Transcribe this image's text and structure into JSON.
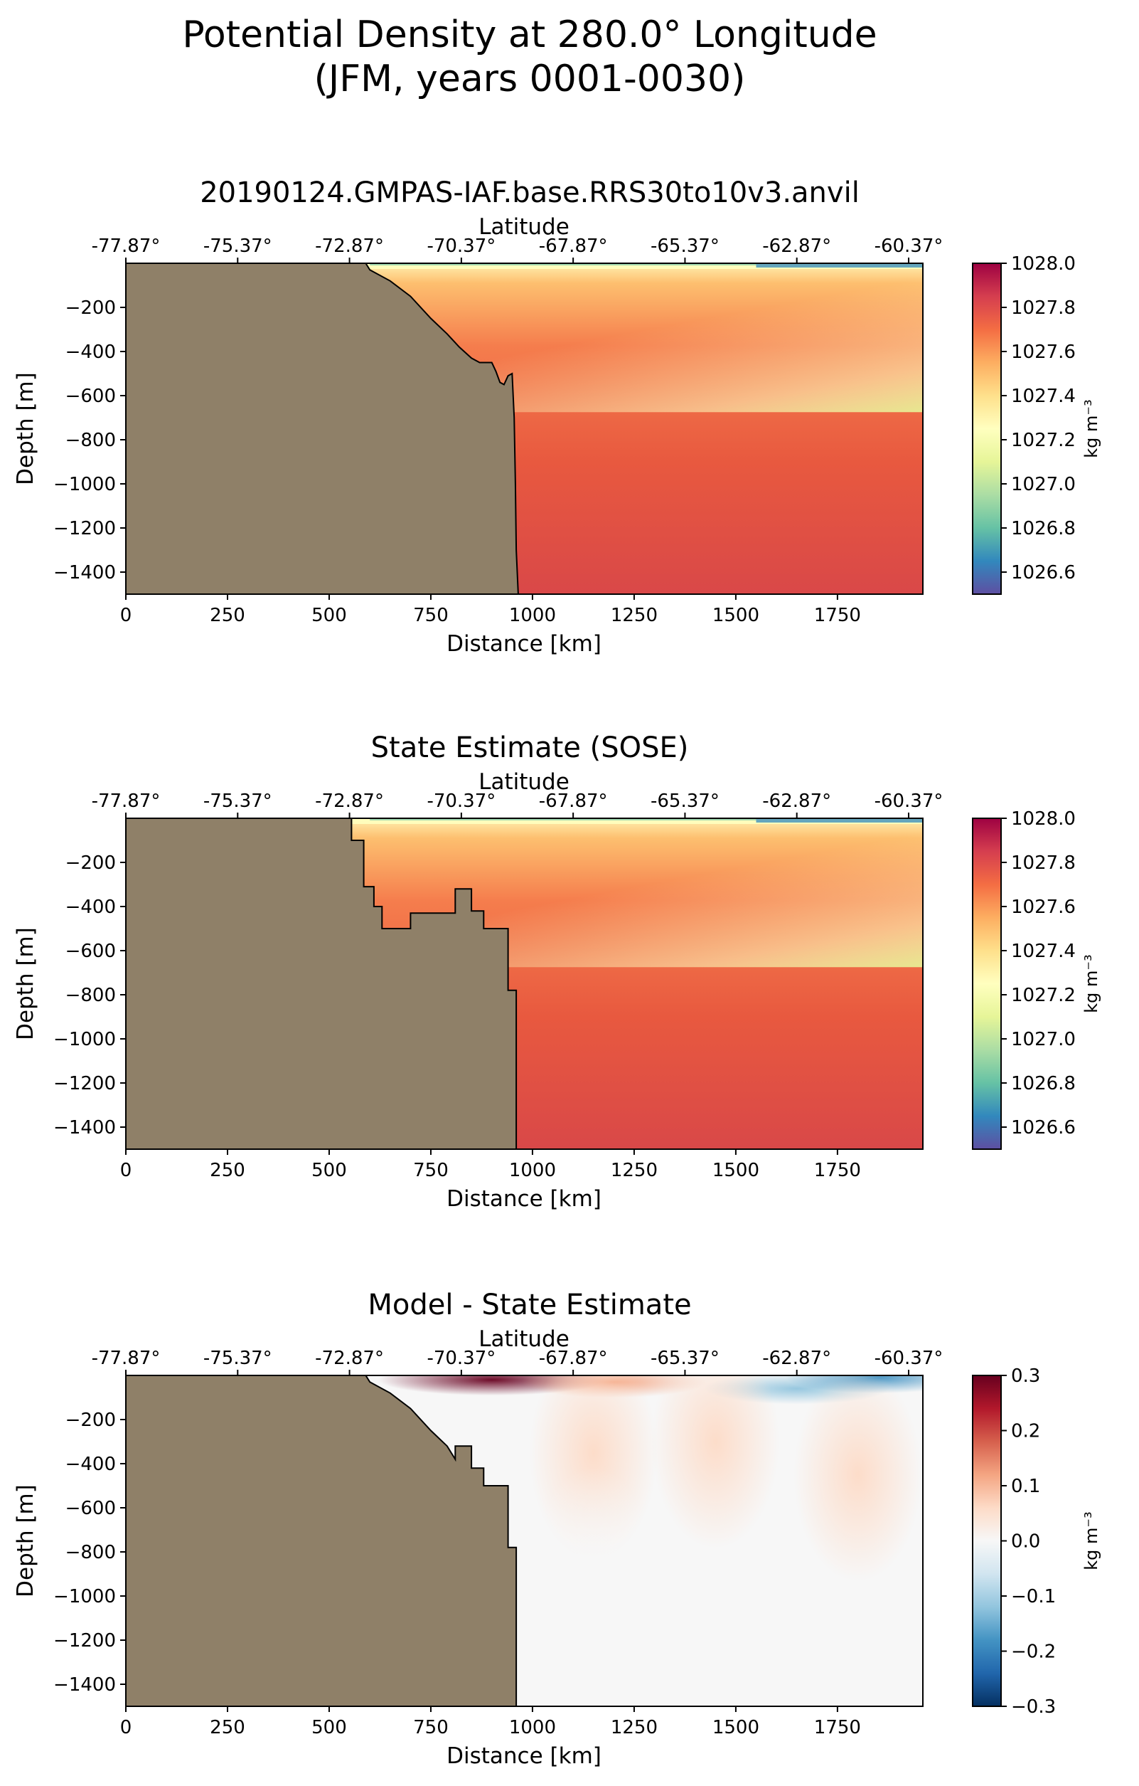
{
  "figure": {
    "title_line1": "Potential Density at 280.0° Longitude",
    "title_line2": "(JFM, years 0001-0030)"
  },
  "chart_data": [
    {
      "type": "heatmap",
      "title": "20190124.GMPAS-IAF.base.RRS30to10v3.anvil",
      "xlabel": "Distance [km]",
      "ylabel": "Depth [m]",
      "top_xlabel": "Latitude",
      "xlim": [
        0,
        1960
      ],
      "ylim": [
        -1500,
        0
      ],
      "x_ticks": [
        0,
        250,
        500,
        750,
        1000,
        1250,
        1500,
        1750
      ],
      "y_ticks": [
        -200,
        -400,
        -600,
        -800,
        -1000,
        -1200,
        -1400
      ],
      "latitude_ticks": [
        "-77.87°",
        "-75.37°",
        "-72.87°",
        "-70.37°",
        "-67.87°",
        "-65.37°",
        "-62.87°",
        "-60.37°"
      ],
      "colormap": "Spectral_r",
      "colorbar": {
        "label": "kg m⁻³",
        "range": [
          1026.5,
          1028.0
        ],
        "ticks": [
          1026.6,
          1026.8,
          1027.0,
          1027.2,
          1027.4,
          1027.6,
          1027.8,
          1028.0
        ]
      },
      "land_color": "#8f8068",
      "bathymetry": [
        [
          0,
          0
        ],
        [
          590,
          0
        ],
        [
          600,
          -30
        ],
        [
          650,
          -80
        ],
        [
          700,
          -150
        ],
        [
          750,
          -250
        ],
        [
          790,
          -320
        ],
        [
          820,
          -380
        ],
        [
          850,
          -430
        ],
        [
          870,
          -450
        ],
        [
          900,
          -450
        ],
        [
          910,
          -490
        ],
        [
          920,
          -540
        ],
        [
          930,
          -550
        ],
        [
          940,
          -510
        ],
        [
          950,
          -500
        ],
        [
          955,
          -700
        ],
        [
          958,
          -1000
        ],
        [
          960,
          -1300
        ],
        [
          965,
          -1500
        ],
        [
          0,
          -1500
        ]
      ],
      "field_summary": {
        "surface_layer": 1026.6,
        "shelf_upper": 1027.5,
        "mid_offshore": 1027.6,
        "deep": 1027.85,
        "offshore_surface_north": 1027.1
      }
    },
    {
      "type": "heatmap",
      "title": "State Estimate (SOSE)",
      "xlabel": "Distance [km]",
      "ylabel": "Depth [m]",
      "top_xlabel": "Latitude",
      "xlim": [
        0,
        1960
      ],
      "ylim": [
        -1500,
        0
      ],
      "x_ticks": [
        0,
        250,
        500,
        750,
        1000,
        1250,
        1500,
        1750
      ],
      "y_ticks": [
        -200,
        -400,
        -600,
        -800,
        -1000,
        -1200,
        -1400
      ],
      "latitude_ticks": [
        "-77.87°",
        "-75.37°",
        "-72.87°",
        "-70.37°",
        "-67.87°",
        "-65.37°",
        "-62.87°",
        "-60.37°"
      ],
      "colormap": "Spectral_r",
      "colorbar": {
        "label": "kg m⁻³",
        "range": [
          1026.5,
          1028.0
        ],
        "ticks": [
          1026.6,
          1026.8,
          1027.0,
          1027.2,
          1027.4,
          1027.6,
          1027.8,
          1028.0
        ]
      },
      "land_color": "#8f8068",
      "bathymetry": [
        [
          0,
          0
        ],
        [
          555,
          0
        ],
        [
          555,
          -100
        ],
        [
          585,
          -100
        ],
        [
          585,
          -310
        ],
        [
          610,
          -310
        ],
        [
          610,
          -400
        ],
        [
          630,
          -400
        ],
        [
          630,
          -500
        ],
        [
          700,
          -500
        ],
        [
          700,
          -430
        ],
        [
          810,
          -430
        ],
        [
          810,
          -320
        ],
        [
          850,
          -320
        ],
        [
          850,
          -420
        ],
        [
          880,
          -420
        ],
        [
          880,
          -500
        ],
        [
          940,
          -500
        ],
        [
          940,
          -780
        ],
        [
          960,
          -780
        ],
        [
          960,
          -1500
        ],
        [
          0,
          -1500
        ]
      ],
      "field_summary": {
        "surface_layer": 1026.6,
        "shelf_upper": 1027.5,
        "mid_offshore": 1027.6,
        "deep": 1027.85,
        "offshore_surface_north": 1027.1
      }
    },
    {
      "type": "heatmap",
      "title": "Model - State Estimate",
      "xlabel": "Distance [km]",
      "ylabel": "Depth [m]",
      "top_xlabel": "Latitude",
      "xlim": [
        0,
        1960
      ],
      "ylim": [
        -1500,
        0
      ],
      "x_ticks": [
        0,
        250,
        500,
        750,
        1000,
        1250,
        1500,
        1750
      ],
      "y_ticks": [
        -200,
        -400,
        -600,
        -800,
        -1000,
        -1200,
        -1400
      ],
      "latitude_ticks": [
        "-77.87°",
        "-75.37°",
        "-72.87°",
        "-70.37°",
        "-67.87°",
        "-65.37°",
        "-62.87°",
        "-60.37°"
      ],
      "colormap": "RdBu_r",
      "colorbar": {
        "label": "kg m⁻³",
        "range": [
          -0.3,
          0.3
        ],
        "ticks": [
          "−0.3",
          "−0.2",
          "−0.1",
          "0.0",
          "0.1",
          "0.2",
          "0.3"
        ]
      },
      "land_color": "#8f8068",
      "bathymetry": [
        [
          0,
          0
        ],
        [
          590,
          0
        ],
        [
          600,
          -30
        ],
        [
          650,
          -80
        ],
        [
          700,
          -150
        ],
        [
          750,
          -250
        ],
        [
          790,
          -320
        ],
        [
          810,
          -380
        ],
        [
          810,
          -320
        ],
        [
          850,
          -320
        ],
        [
          850,
          -420
        ],
        [
          880,
          -420
        ],
        [
          880,
          -500
        ],
        [
          940,
          -500
        ],
        [
          940,
          -780
        ],
        [
          960,
          -780
        ],
        [
          960,
          -1500
        ],
        [
          0,
          -1500
        ]
      ],
      "anomalies": [
        {
          "x": 900,
          "depth": -20,
          "value": 0.3
        },
        {
          "x": 1200,
          "depth": -30,
          "value": 0.12
        },
        {
          "x": 1650,
          "depth": -60,
          "value": -0.15
        },
        {
          "x": 1850,
          "depth": -10,
          "value": -0.2
        },
        {
          "x": 1150,
          "depth": -350,
          "value": 0.04
        },
        {
          "x": 1450,
          "depth": -300,
          "value": 0.05
        },
        {
          "x": 1800,
          "depth": -450,
          "value": 0.05
        },
        {
          "x": 1150,
          "depth": -900,
          "value": -0.02
        }
      ]
    }
  ]
}
